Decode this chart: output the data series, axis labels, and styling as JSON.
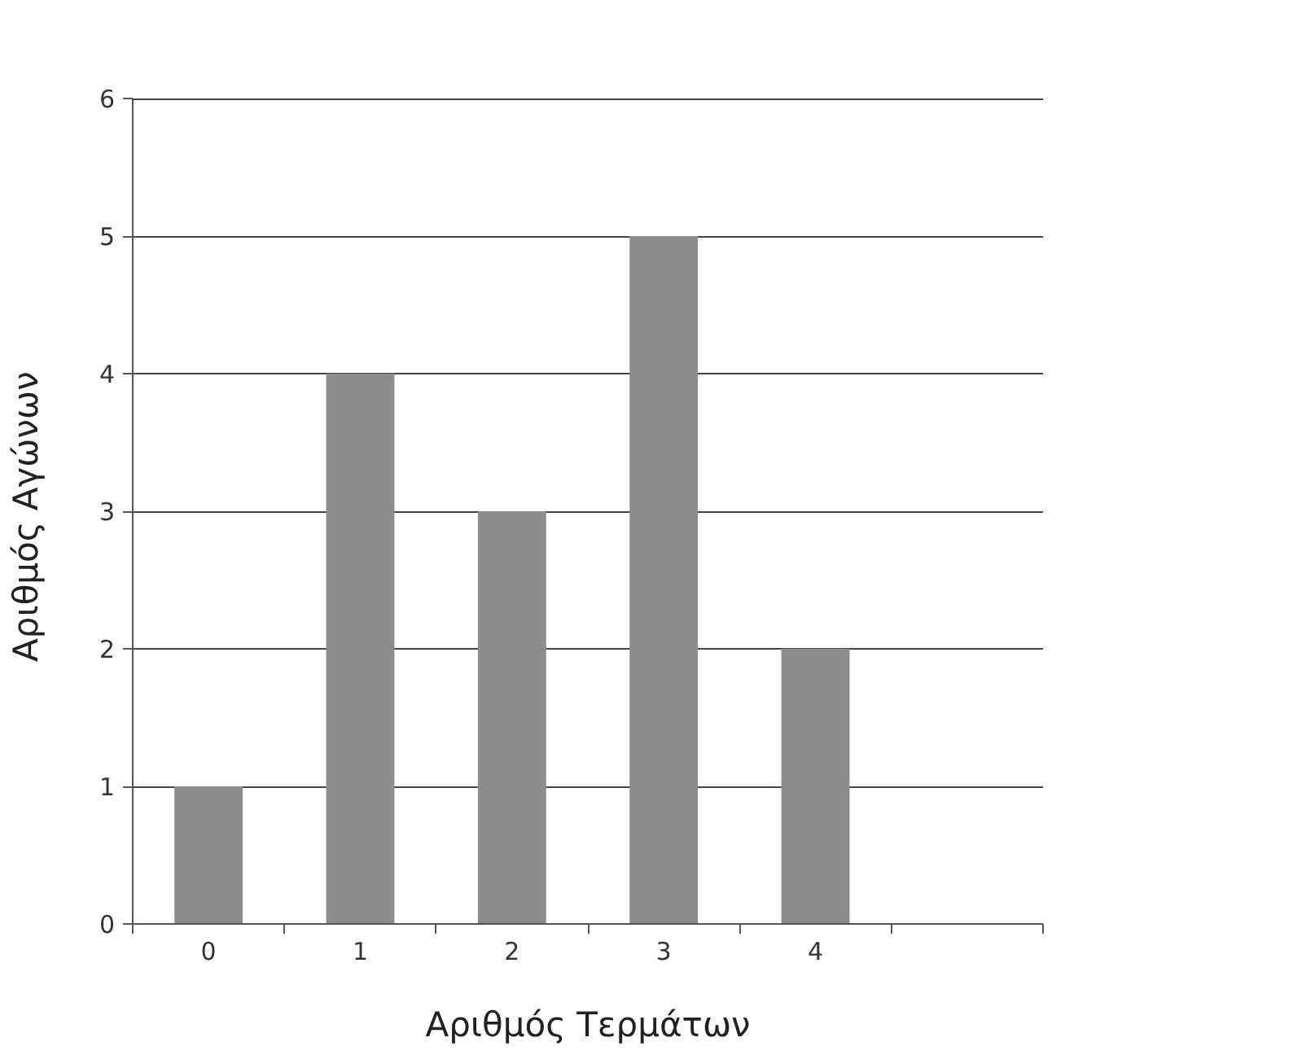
{
  "chart_data": {
    "type": "bar",
    "xlabel": "Αριθμός Τερμάτων",
    "ylabel": "Αριθμός  Αγώνων",
    "categories": [
      "0",
      "1",
      "2",
      "3",
      "4",
      null
    ],
    "values": [
      1,
      4,
      3,
      5,
      2,
      null
    ],
    "color": "#8c8c8c",
    "ylim": [
      0,
      6
    ],
    "yticks": [
      0,
      1,
      2,
      3,
      4,
      5,
      6
    ],
    "grid": "y"
  }
}
